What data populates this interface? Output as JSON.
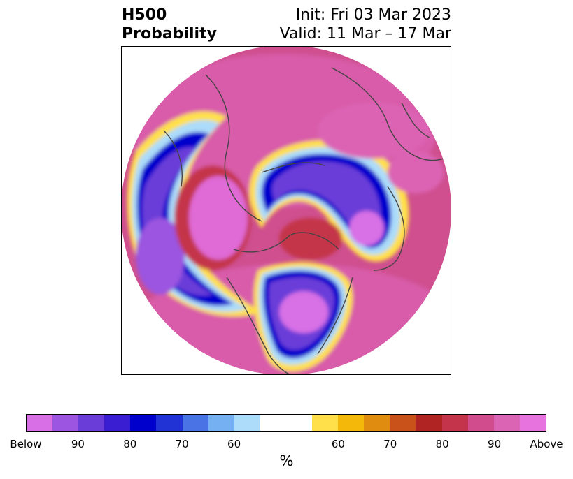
{
  "title": {
    "left_line1": "H500",
    "left_line2": "Probability",
    "right_line1": "Init: Fri 03 Mar 2023",
    "right_line2": "Valid: 11 Mar – 17 Mar"
  },
  "map": {
    "projection": "north-polar-stereographic",
    "field": "500 hPa height anomaly probability",
    "outline_color": "#444444"
  },
  "colorbar": {
    "colors": [
      "#d86fe6",
      "#9b55e0",
      "#6a3cd8",
      "#3a1fd2",
      "#0000cc",
      "#2233d6",
      "#4a73e6",
      "#74b0f2",
      "#acdcfa",
      "#ffffff",
      "#ffffff",
      "#ffe04a",
      "#f4b80a",
      "#e08c10",
      "#c8521a",
      "#b02424",
      "#c4344a",
      "#d04c8c",
      "#dc64b4",
      "#e673de"
    ],
    "ticks": [
      "Below",
      "90",
      "80",
      "70",
      "60",
      "60",
      "70",
      "80",
      "90",
      "Above"
    ],
    "units": "%"
  }
}
